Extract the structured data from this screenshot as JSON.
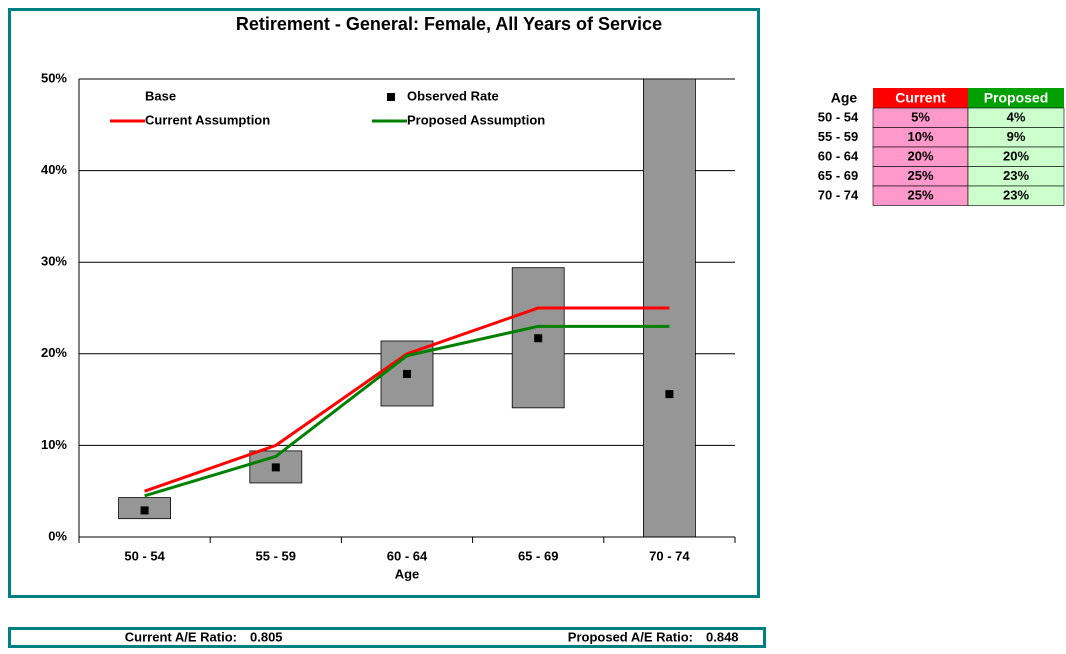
{
  "chart_data": {
    "type": "range-line",
    "title": "Retirement - General: Female, All Years of Service",
    "x_label": "Age",
    "categories": [
      "50 - 54",
      "55 - 59",
      "60 - 64",
      "65 - 69",
      "70 - 74"
    ],
    "series": [
      {
        "name": "Base",
        "kind": "range-bar",
        "color": "#969696",
        "low": [
          2,
          5.9,
          14.3,
          14.1,
          0
        ],
        "high": [
          4.3,
          9.4,
          21.4,
          29.4,
          50
        ]
      },
      {
        "name": "Observed Rate",
        "kind": "marker",
        "color": "#000000",
        "values": [
          2.9,
          7.6,
          17.8,
          21.7,
          15.6
        ]
      },
      {
        "name": "Current Assumption",
        "kind": "line",
        "color": "#ff0000",
        "values": [
          5,
          10,
          20,
          25,
          25
        ]
      },
      {
        "name": "Proposed Assumption",
        "kind": "line",
        "color": "#008000",
        "values": [
          4.5,
          8.8,
          19.8,
          23,
          23
        ]
      }
    ],
    "ylim": [
      0,
      50
    ],
    "yticks": [
      {
        "value": 0,
        "label": "0%"
      },
      {
        "value": 10,
        "label": "10%"
      },
      {
        "value": 20,
        "label": "20%"
      },
      {
        "value": 30,
        "label": "30%"
      },
      {
        "value": 40,
        "label": "40%"
      },
      {
        "value": 50,
        "label": "50%"
      }
    ],
    "grid": true
  },
  "table": {
    "columns": [
      "Age",
      "Current",
      "Proposed"
    ],
    "rows": [
      [
        "50 - 54",
        "5%",
        "4%"
      ],
      [
        "55 - 59",
        "10%",
        "9%"
      ],
      [
        "60 - 64",
        "20%",
        "20%"
      ],
      [
        "65 - 69",
        "25%",
        "23%"
      ],
      [
        "70 - 74",
        "25%",
        "23%"
      ]
    ]
  },
  "footer": {
    "current_label": "Current A/E Ratio:",
    "current_value": "0.805",
    "proposed_label": "Proposed A/E Ratio:",
    "proposed_value": "0.848"
  }
}
